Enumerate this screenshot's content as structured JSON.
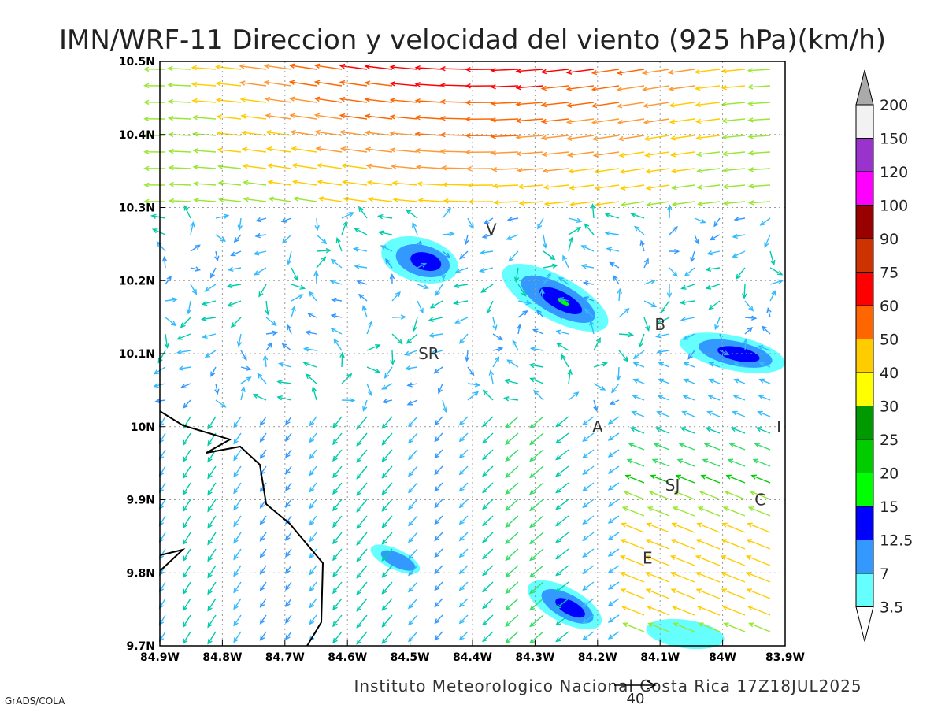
{
  "title": "IMN/WRF-11 Direccion y velocidad del viento (925 hPa)(km/h)",
  "footer": "Instituto Meteorologico Nacional Costa Rica 17Z18JUL2025",
  "credit": "GrADS/COLA",
  "reference_vector": {
    "label": "40"
  },
  "map": {
    "lon_range": [
      -84.9,
      -83.9
    ],
    "lat_range": [
      9.7,
      10.5
    ],
    "x_ticks": [
      "84.9W",
      "84.8W",
      "84.7W",
      "84.6W",
      "84.5W",
      "84.4W",
      "84.3W",
      "84.2W",
      "84.1W",
      "84W",
      "83.9W"
    ],
    "y_ticks": [
      "10.5N",
      "10.4N",
      "10.3N",
      "10.2N",
      "10.1N",
      "10N",
      "9.9N",
      "9.8N",
      "9.7N"
    ],
    "places": [
      {
        "name": "V",
        "lon": -84.37,
        "lat": 10.27
      },
      {
        "name": "SR",
        "lon": -84.47,
        "lat": 10.1
      },
      {
        "name": "B",
        "lon": -84.1,
        "lat": 10.14
      },
      {
        "name": "A",
        "lon": -84.2,
        "lat": 10.0
      },
      {
        "name": "I",
        "lon": -83.91,
        "lat": 10.0
      },
      {
        "name": "SJ",
        "lon": -84.08,
        "lat": 9.92
      },
      {
        "name": "C",
        "lon": -83.94,
        "lat": 9.9
      },
      {
        "name": "E",
        "lon": -84.12,
        "lat": 9.82
      }
    ]
  },
  "colorbar": {
    "labels": [
      "200",
      "150",
      "120",
      "100",
      "90",
      "75",
      "60",
      "50",
      "40",
      "30",
      "25",
      "20",
      "15",
      "12.5",
      "7",
      "3.5"
    ],
    "colors": [
      "#f2f2f2",
      "#9933cc",
      "#ff00ff",
      "#990000",
      "#cc3300",
      "#ff0000",
      "#ff6600",
      "#ffcc00",
      "#ffff00",
      "#009900",
      "#00cc00",
      "#00ff00",
      "#0000ff",
      "#3399ff",
      "#66ffff"
    ],
    "over_color": "#aaaaaa",
    "under_color": "#ffffff"
  }
}
